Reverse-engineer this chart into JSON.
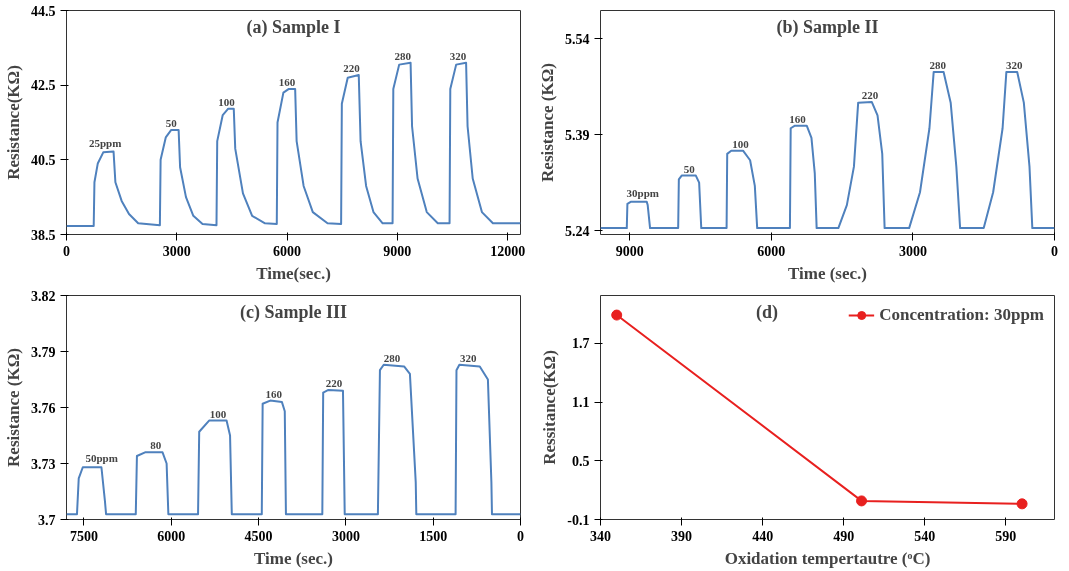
{
  "chart_data": [
    {
      "type": "line",
      "title": "(a) Sample I",
      "xlabel": "Time(sec.)",
      "ylabel": "Resistance(KΩ)",
      "xlim": [
        0,
        12350
      ],
      "xticks": [
        0,
        3000,
        6000,
        9000,
        12000
      ],
      "ylim": [
        38.5,
        44.5
      ],
      "yticks": [
        38.5,
        40.5,
        42.5,
        44.5
      ],
      "x": [
        0,
        740,
        760,
        850,
        1000,
        1280,
        1330,
        1500,
        1700,
        1950,
        2540,
        2560,
        2700,
        2850,
        3050,
        3090,
        3250,
        3450,
        3700,
        4080,
        4100,
        4250,
        4400,
        4550,
        4590,
        4800,
        5050,
        5400,
        5720,
        5740,
        5900,
        6050,
        6220,
        6260,
        6450,
        6700,
        7100,
        7470,
        7490,
        7650,
        7950,
        8000,
        8150,
        8350,
        8600,
        8870,
        8890,
        9050,
        9360,
        9400,
        9550,
        9800,
        10100,
        10420,
        10440,
        10600,
        10870,
        10910,
        11050,
        11300,
        11600,
        12350
      ],
      "series": [
        {
          "color": "#4f81bd",
          "values": [
            38.73,
            38.73,
            39.9,
            40.4,
            40.7,
            40.72,
            39.9,
            39.4,
            39.05,
            38.8,
            38.75,
            40.5,
            41.1,
            41.3,
            41.3,
            40.3,
            39.5,
            39.0,
            38.78,
            38.75,
            41.0,
            41.7,
            41.87,
            41.87,
            40.8,
            39.6,
            39.0,
            38.8,
            38.78,
            41.5,
            42.3,
            42.4,
            42.4,
            41.0,
            39.8,
            39.1,
            38.8,
            38.78,
            42.0,
            42.7,
            42.77,
            41.0,
            39.8,
            39.1,
            38.8,
            38.8,
            42.4,
            43.05,
            43.1,
            41.4,
            40.0,
            39.1,
            38.8,
            38.8,
            42.4,
            43.05,
            43.1,
            41.4,
            40.0,
            39.1,
            38.8,
            38.8
          ]
        }
      ],
      "annotations": [
        {
          "text": "25ppm",
          "x": 1050,
          "y": 40.72
        },
        {
          "text": "50",
          "x": 2850,
          "y": 41.3
        },
        {
          "text": "100",
          "x": 4350,
          "y": 41.87
        },
        {
          "text": "160",
          "x": 6000,
          "y": 42.4
        },
        {
          "text": "220",
          "x": 7750,
          "y": 42.77
        },
        {
          "text": "280",
          "x": 9150,
          "y": 43.1
        },
        {
          "text": "320",
          "x": 10650,
          "y": 43.1
        }
      ]
    },
    {
      "type": "line",
      "title": "(b) Sample II",
      "xlabel": "Time (sec.)",
      "ylabel": "Resistance (KΩ)",
      "xlim": [
        9620,
        0
      ],
      "xticks": [
        9000,
        6000,
        3000,
        0
      ],
      "ylim": [
        5.234,
        5.584
      ],
      "yticks": [
        5.24,
        5.39,
        5.54
      ],
      "x": [
        9620,
        9063,
        9050,
        8980,
        8640,
        8620,
        8570,
        7974,
        7960,
        7900,
        7600,
        7530,
        7485,
        6948,
        6935,
        6850,
        6600,
        6450,
        6350,
        6300,
        5606,
        5590,
        5500,
        5250,
        5150,
        5080,
        5040,
        4580,
        4400,
        4250,
        4160,
        3870,
        3750,
        3650,
        3600,
        3080,
        2850,
        2650,
        2560,
        2350,
        2200,
        2080,
        2000,
        1500,
        1300,
        1100,
        1020,
        790,
        650,
        530,
        470,
        0
      ],
      "series": [
        {
          "color": "#4f81bd",
          "values": [
            5.244,
            5.244,
            5.282,
            5.285,
            5.285,
            5.28,
            5.244,
            5.244,
            5.32,
            5.326,
            5.326,
            5.315,
            5.244,
            5.244,
            5.36,
            5.365,
            5.365,
            5.35,
            5.31,
            5.244,
            5.244,
            5.4,
            5.404,
            5.404,
            5.385,
            5.33,
            5.244,
            5.244,
            5.28,
            5.34,
            5.44,
            5.441,
            5.42,
            5.36,
            5.244,
            5.244,
            5.3,
            5.4,
            5.488,
            5.488,
            5.44,
            5.34,
            5.244,
            5.244,
            5.3,
            5.4,
            5.488,
            5.488,
            5.44,
            5.34,
            5.244,
            5.244
          ]
        }
      ],
      "annotations": [
        {
          "text": "30ppm",
          "x": 8724,
          "y": 5.285
        },
        {
          "text": "50",
          "x": 7737,
          "y": 5.326
        },
        {
          "text": "100",
          "x": 6656,
          "y": 5.365
        },
        {
          "text": "160",
          "x": 5448,
          "y": 5.404
        },
        {
          "text": "220",
          "x": 3909,
          "y": 5.441
        },
        {
          "text": "280",
          "x": 2473,
          "y": 5.488
        },
        {
          "text": "320",
          "x": 855,
          "y": 5.488
        }
      ]
    },
    {
      "type": "line",
      "title": "(c) Sample III",
      "xlabel": "Time (sec.)",
      "ylabel": "Resistance (KΩ)",
      "xlim": [
        7800,
        0
      ],
      "xticks": [
        7500,
        6000,
        4500,
        3000,
        1500,
        0
      ],
      "ylim": [
        3.7,
        3.82
      ],
      "yticks": [
        3.7,
        3.73,
        3.76,
        3.79,
        3.82
      ],
      "x": [
        7800,
        7620,
        7590,
        7520,
        7200,
        7140,
        7120,
        6610,
        6590,
        6450,
        6150,
        6080,
        6050,
        5540,
        5520,
        5350,
        5050,
        4990,
        4960,
        4445,
        4430,
        4300,
        4100,
        4050,
        4030,
        3405,
        3390,
        3300,
        3050,
        3020,
        2450,
        2415,
        2350,
        2000,
        1900,
        1800,
        1790,
        1115,
        1100,
        1050,
        700,
        560,
        500,
        490,
        0
      ],
      "series": [
        {
          "color": "#4f81bd",
          "values": [
            3.7028,
            3.7028,
            3.722,
            3.728,
            3.728,
            3.71,
            3.7028,
            3.7028,
            3.734,
            3.736,
            3.736,
            3.73,
            3.7028,
            3.7028,
            3.747,
            3.753,
            3.753,
            3.745,
            3.7028,
            3.7028,
            3.762,
            3.7637,
            3.763,
            3.758,
            3.7028,
            3.7028,
            3.768,
            3.7694,
            3.769,
            3.7028,
            3.7028,
            3.78,
            3.7829,
            3.782,
            3.778,
            3.72,
            3.7028,
            3.7028,
            3.78,
            3.7829,
            3.782,
            3.775,
            3.72,
            3.7028,
            3.7028
          ]
        }
      ],
      "annotations": [
        {
          "text": "50ppm",
          "x": 7197,
          "y": 3.728
        },
        {
          "text": "80",
          "x": 6268,
          "y": 3.736
        },
        {
          "text": "100",
          "x": 5198,
          "y": 3.753
        },
        {
          "text": "160",
          "x": 4239,
          "y": 3.7637
        },
        {
          "text": "220",
          "x": 3205,
          "y": 3.7694
        },
        {
          "text": "280",
          "x": 2209,
          "y": 3.7829
        },
        {
          "text": "320",
          "x": 897,
          "y": 3.7829
        }
      ]
    },
    {
      "type": "line",
      "title": "(d)",
      "xlabel": "Oxidation tempertautre (ᵒC)",
      "ylabel": "Ressitance(KΩ)",
      "xlim": [
        340,
        620
      ],
      "xticks": [
        340,
        390,
        440,
        490,
        540,
        590
      ],
      "ylim": [
        -0.1,
        2.19
      ],
      "yticks": [
        -0.1,
        0.5,
        1.1,
        1.7
      ],
      "marker": "circle",
      "legend": "top right",
      "x": [
        350,
        501,
        600
      ],
      "series": [
        {
          "name": "Concentration: 30ppm",
          "color": "#e8201f",
          "values": [
            1.99,
            0.09,
            0.06
          ]
        }
      ]
    }
  ]
}
